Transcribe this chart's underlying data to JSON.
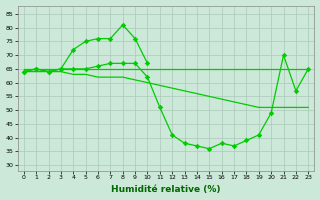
{
  "line1_x": [
    0,
    1,
    2,
    3,
    4,
    5,
    6,
    7,
    8,
    9,
    10
  ],
  "line1_y": [
    64,
    65,
    64,
    65,
    72,
    75,
    76,
    76,
    81,
    76,
    67
  ],
  "line2_x": [
    0,
    23
  ],
  "line2_y": [
    65,
    65
  ],
  "line3_x": [
    0,
    1,
    2,
    3,
    4,
    5,
    6,
    7,
    8,
    9,
    10,
    11,
    12,
    13,
    14,
    15,
    16,
    17,
    18,
    19,
    20,
    21,
    22,
    23
  ],
  "line3_y": [
    64,
    64,
    64,
    64,
    63,
    63,
    62,
    62,
    62,
    61,
    60,
    59,
    58,
    57,
    56,
    55,
    54,
    53,
    52,
    51,
    51,
    51,
    51,
    51
  ],
  "line4_x": [
    0,
    1,
    2,
    3,
    4,
    5,
    6,
    7,
    8,
    9,
    10,
    11,
    12,
    13,
    14,
    15,
    16,
    17,
    18,
    19,
    20,
    21,
    22,
    23
  ],
  "line4_y": [
    64,
    65,
    64,
    65,
    65,
    65,
    66,
    67,
    67,
    67,
    62,
    51,
    41,
    38,
    37,
    36,
    38,
    37,
    39,
    41,
    49,
    70,
    57,
    65
  ],
  "xlabel": "Humidité relative (%)",
  "ylim": [
    28,
    88
  ],
  "xlim": [
    -0.5,
    23.5
  ],
  "yticks": [
    30,
    35,
    40,
    45,
    50,
    55,
    60,
    65,
    70,
    75,
    80,
    85
  ],
  "xticks": [
    0,
    1,
    2,
    3,
    4,
    5,
    6,
    7,
    8,
    9,
    10,
    11,
    12,
    13,
    14,
    15,
    16,
    17,
    18,
    19,
    20,
    21,
    22,
    23
  ],
  "line_color": "#00cc00",
  "bg_color": "#cce8d8",
  "grid_color": "#aac8b8",
  "grid_minor_color": "#bbddc8"
}
